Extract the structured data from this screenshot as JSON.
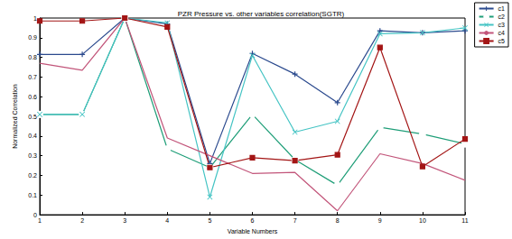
{
  "chart_data": {
    "type": "line",
    "title": "PZR Pressure vs. other variables correlation(SGTR)",
    "x_label": "Variable Numbers",
    "y_label": "Normalized Correlation",
    "x": [
      1,
      2,
      3,
      4,
      5,
      6,
      7,
      8,
      9,
      10,
      11
    ],
    "series": [
      {
        "name": "c1",
        "color": "#2b4a8e",
        "marker": "plus",
        "values": [
          0.815,
          0.815,
          1.0,
          0.97,
          0.26,
          0.82,
          0.715,
          0.57,
          0.935,
          0.925,
          0.935
        ]
      },
      {
        "name": "c2",
        "color": "#1f9e78",
        "marker": "circle",
        "values": [
          0.51,
          0.51,
          1.0,
          0.335,
          0.24,
          0.51,
          0.28,
          0.15,
          0.445,
          0.41,
          0.36
        ]
      },
      {
        "name": "c3",
        "color": "#45c4c4",
        "marker": "x",
        "values": [
          0.51,
          0.51,
          1.0,
          0.975,
          0.09,
          0.81,
          0.42,
          0.475,
          0.92,
          0.925,
          0.95
        ]
      },
      {
        "name": "c4",
        "color": "#c2557a",
        "marker": "none",
        "values": [
          0.77,
          0.735,
          1.0,
          0.39,
          0.3,
          0.21,
          0.215,
          0.02,
          0.31,
          0.26,
          0.175
        ]
      },
      {
        "name": "c5",
        "color": "#a31515",
        "marker": "square",
        "values": [
          0.985,
          0.985,
          1.0,
          0.955,
          0.24,
          0.29,
          0.275,
          0.305,
          0.85,
          0.245,
          0.385
        ]
      }
    ],
    "xlim": [
      1,
      11
    ],
    "xticks": [
      1,
      2,
      3,
      4,
      5,
      6,
      7,
      8,
      9,
      10,
      11
    ],
    "ylim": [
      0,
      1
    ],
    "yticks": [
      0,
      0.1,
      0.2,
      0.3,
      0.4,
      0.5,
      0.6,
      0.7,
      0.8,
      0.9,
      1
    ],
    "grid": false,
    "legend": "upper right"
  }
}
